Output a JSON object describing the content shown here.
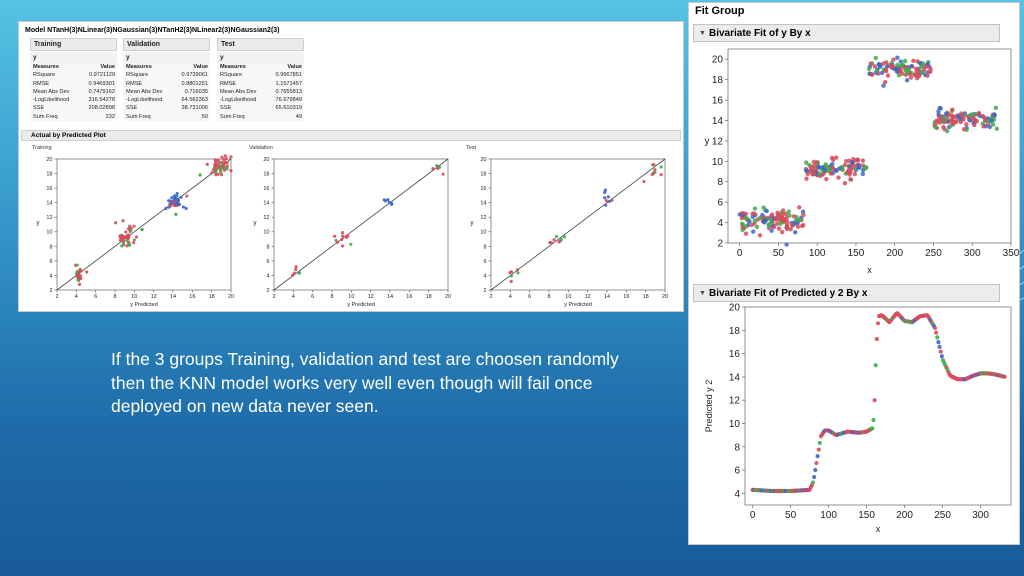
{
  "caption": "If the 3 groups Training, validation and test are choosen randomly then the KNN model works very well even though will fail once deployed on new data never seen.",
  "model": {
    "title": "Model NTanH(3)NLinear(3)NGaussian(3)NTanH2(3)NLinear2(3)NGaussian2(3)",
    "tables": [
      {
        "name": "Training",
        "response": "y",
        "col_measures": "Measures",
        "col_value": "Value",
        "rows": [
          {
            "k": "RSquare",
            "v": "0.9721129"
          },
          {
            "k": "RMSE",
            "v": "0.9469301"
          },
          {
            "k": "Mean Abs Dev",
            "v": "0.7479162"
          },
          {
            "k": "-LogLikelihood",
            "v": "316.54278"
          },
          {
            "k": "SSE",
            "v": "208.02898"
          },
          {
            "k": "Sum Freq",
            "v": "232"
          }
        ]
      },
      {
        "name": "Validation",
        "response": "y",
        "col_measures": "Measures",
        "col_value": "Value",
        "rows": [
          {
            "k": "RSquare",
            "v": "0.9739061"
          },
          {
            "k": "RMSE",
            "v": "0.8801251"
          },
          {
            "k": "Mean Abs Dev",
            "v": "0.716035"
          },
          {
            "k": "-LogLikelihood",
            "v": "64.562363"
          },
          {
            "k": "SSE",
            "v": "38.731006"
          },
          {
            "k": "Sum Freq",
            "v": "50"
          }
        ]
      },
      {
        "name": "Test",
        "response": "y",
        "col_measures": "Measures",
        "col_value": "Value",
        "rows": [
          {
            "k": "RSquare",
            "v": "0.9667851"
          },
          {
            "k": "RMSE",
            "v": "1.1571457"
          },
          {
            "k": "Mean Abs Dev",
            "v": "0.7655813"
          },
          {
            "k": "-LogLikelihood",
            "v": "76.679849"
          },
          {
            "k": "SSE",
            "v": "65.610319"
          },
          {
            "k": "Sum Freq",
            "v": "49"
          }
        ]
      }
    ],
    "avp_title": "Actual by Predicted Plot"
  },
  "fit_group": {
    "title": "Fit Group",
    "plot1_title": "Bivariate Fit of y By x",
    "plot2_title": "Bivariate Fit of Predicted y 2 By x"
  },
  "colors": {
    "red": "#d84a5c",
    "green": "#3fae4a",
    "blue": "#3b67c9",
    "line": "#444444"
  },
  "chart_data": [
    {
      "type": "scatter",
      "panel": "Training",
      "xlabel": "y Predicted",
      "ylabel": "y",
      "xlim": [
        2,
        20
      ],
      "ylim": [
        2,
        20
      ],
      "xticks": [
        2,
        4,
        6,
        8,
        10,
        12,
        14,
        16,
        18,
        20
      ],
      "yticks": [
        2,
        4,
        6,
        8,
        10,
        12,
        14,
        16,
        18,
        20
      ],
      "diagonal": true,
      "clusters": [
        {
          "cx": 4.3,
          "cy": 4.2,
          "sx": 0.2,
          "sy": 0.7,
          "n": 24,
          "colors": [
            "red",
            "red",
            "red",
            "green"
          ]
        },
        {
          "cx": 9.1,
          "cy": 9.2,
          "sx": 0.5,
          "sy": 0.7,
          "n": 40,
          "colors": [
            "red",
            "red",
            "red",
            "green"
          ]
        },
        {
          "cx": 14.2,
          "cy": 14.1,
          "sx": 0.5,
          "sy": 0.6,
          "n": 40,
          "colors": [
            "blue",
            "blue",
            "blue",
            "red"
          ]
        },
        {
          "cx": 18.9,
          "cy": 19.0,
          "sx": 0.6,
          "sy": 0.7,
          "n": 50,
          "colors": [
            "red",
            "red",
            "red",
            "green"
          ]
        }
      ]
    },
    {
      "type": "scatter",
      "panel": "Validation",
      "xlabel": "y Predicted",
      "ylabel": "y",
      "xlim": [
        2,
        20
      ],
      "ylim": [
        2,
        20
      ],
      "xticks": [
        2,
        4,
        6,
        8,
        10,
        12,
        14,
        16,
        18,
        20
      ],
      "yticks": [
        2,
        4,
        6,
        8,
        10,
        12,
        14,
        16,
        18,
        20
      ],
      "diagonal": true,
      "clusters": [
        {
          "cx": 4.2,
          "cy": 4.3,
          "sx": 0.3,
          "sy": 0.5,
          "n": 6,
          "colors": [
            "red",
            "green",
            "red"
          ]
        },
        {
          "cx": 9.2,
          "cy": 9.0,
          "sx": 0.6,
          "sy": 0.6,
          "n": 10,
          "colors": [
            "red",
            "red",
            "red",
            "green"
          ]
        },
        {
          "cx": 14.0,
          "cy": 13.8,
          "sx": 0.3,
          "sy": 0.5,
          "n": 6,
          "colors": [
            "blue"
          ]
        },
        {
          "cx": 18.8,
          "cy": 19.1,
          "sx": 0.4,
          "sy": 0.5,
          "n": 6,
          "colors": [
            "red",
            "red",
            "green"
          ]
        }
      ]
    },
    {
      "type": "scatter",
      "panel": "Test",
      "xlabel": "y Predicted",
      "ylabel": "y",
      "xlim": [
        2,
        20
      ],
      "ylim": [
        2,
        20
      ],
      "xticks": [
        2,
        4,
        6,
        8,
        10,
        12,
        14,
        16,
        18,
        20
      ],
      "yticks": [
        2,
        4,
        6,
        8,
        10,
        12,
        14,
        16,
        18,
        20
      ],
      "diagonal": true,
      "clusters": [
        {
          "cx": 4.3,
          "cy": 4.4,
          "sx": 0.3,
          "sy": 0.5,
          "n": 6,
          "colors": [
            "red",
            "green",
            "red"
          ]
        },
        {
          "cx": 9.0,
          "cy": 8.8,
          "sx": 0.4,
          "sy": 0.4,
          "n": 8,
          "colors": [
            "red",
            "green",
            "red"
          ]
        },
        {
          "cx": 14.0,
          "cy": 14.5,
          "sx": 0.3,
          "sy": 0.5,
          "n": 8,
          "colors": [
            "blue",
            "blue",
            "red"
          ]
        },
        {
          "cx": 18.9,
          "cy": 19.0,
          "sx": 0.4,
          "sy": 0.6,
          "n": 10,
          "colors": [
            "red",
            "red",
            "green"
          ]
        }
      ]
    },
    {
      "type": "scatter",
      "panel": "Bivariate Fit of y By x",
      "xlabel": "x",
      "ylabel": "y",
      "xlim": [
        -15,
        350
      ],
      "ylim": [
        2,
        21
      ],
      "xticks": [
        0,
        50,
        100,
        150,
        200,
        250,
        300,
        350
      ],
      "yticks": [
        2,
        4,
        6,
        8,
        10,
        12,
        14,
        16,
        18,
        20
      ],
      "clusters": [
        {
          "x0": 0,
          "x1": 83,
          "yc": 4.2,
          "sy": 0.55,
          "n": 120,
          "colors": [
            "red",
            "blue",
            "green",
            "red"
          ]
        },
        {
          "x0": 85,
          "x1": 165,
          "yc": 9.2,
          "sy": 0.5,
          "n": 110,
          "colors": [
            "red",
            "blue",
            "green",
            "red"
          ]
        },
        {
          "x0": 165,
          "x1": 248,
          "yc": 19.0,
          "sy": 0.5,
          "n": 110,
          "colors": [
            "red",
            "blue",
            "green",
            "red"
          ]
        },
        {
          "x0": 250,
          "x1": 333,
          "yc": 14.1,
          "sy": 0.5,
          "n": 110,
          "colors": [
            "red",
            "blue",
            "green",
            "red"
          ]
        }
      ]
    },
    {
      "type": "line",
      "panel": "Bivariate Fit of Predicted y 2 By x",
      "xlabel": "x",
      "ylabel": "Predicted y 2",
      "xlim": [
        -10,
        340
      ],
      "ylim": [
        3,
        20
      ],
      "xticks": [
        0,
        50,
        100,
        150,
        200,
        250,
        300
      ],
      "yticks": [
        4,
        6,
        8,
        10,
        12,
        14,
        16,
        18,
        20
      ],
      "x": [
        0,
        25,
        50,
        75,
        80,
        85,
        90,
        95,
        100,
        110,
        125,
        140,
        150,
        158,
        160,
        162,
        164,
        166,
        170,
        180,
        190,
        200,
        210,
        220,
        230,
        240,
        250,
        260,
        270,
        280,
        290,
        300,
        310,
        320,
        332
      ],
      "y": [
        4.3,
        4.2,
        4.2,
        4.3,
        5,
        7,
        8.9,
        9.4,
        9.4,
        9.0,
        9.3,
        9.2,
        9.3,
        9.6,
        11,
        15,
        18,
        19.2,
        19.3,
        18.7,
        19.5,
        18.8,
        18.7,
        19.2,
        19.3,
        18.2,
        15.5,
        14.1,
        13.8,
        13.8,
        14.1,
        14.3,
        14.3,
        14.2,
        14.0
      ]
    }
  ]
}
